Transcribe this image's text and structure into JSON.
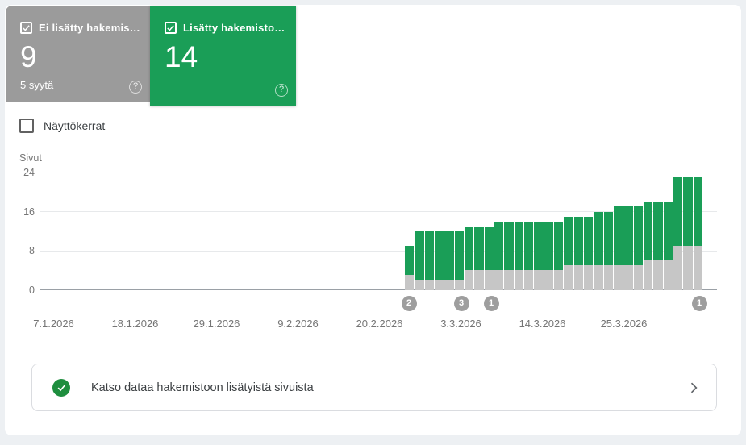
{
  "cards": {
    "not_indexed": {
      "label": "Ei lisätty hakemis…",
      "value": "9",
      "sublabel": "5 syytä",
      "checked": true
    },
    "indexed": {
      "label": "Lisätty hakemisto…",
      "value": "14",
      "checked": true
    }
  },
  "impressions_toggle": {
    "label": "Näyttökerrat",
    "checked": false
  },
  "chart_data": {
    "type": "bar",
    "stacked": true,
    "ylabel": "Sivut",
    "ylim": [
      0,
      24
    ],
    "y_ticks": [
      24,
      16,
      8,
      0
    ],
    "grid": true,
    "x_tick_labels": [
      "7.1.2026",
      "18.1.2026",
      "29.1.2026",
      "9.2.2026",
      "20.2.2026",
      "3.3.2026",
      "14.3.2026",
      "25.3.2026"
    ],
    "series": [
      {
        "name": "Ei lisätty hakemistoon",
        "color": "#c6c6c6",
        "values": [
          3,
          2,
          2,
          2,
          2,
          2,
          4,
          4,
          4,
          4,
          4,
          4,
          4,
          4,
          4,
          4,
          5,
          5,
          5,
          5,
          5,
          5,
          5,
          5,
          6,
          6,
          6,
          9,
          9,
          9
        ]
      },
      {
        "name": "Lisätty hakemistoon",
        "color": "#1a9e57",
        "values": [
          6,
          10,
          10,
          10,
          10,
          10,
          9,
          9,
          9,
          10,
          10,
          10,
          10,
          10,
          10,
          10,
          10,
          10,
          10,
          11,
          11,
          12,
          12,
          12,
          12,
          12,
          12,
          14,
          14,
          14
        ]
      }
    ],
    "annotations": [
      {
        "label": "2",
        "bar_index": 0
      },
      {
        "label": "3",
        "bar_index": 6
      },
      {
        "label": "1",
        "bar_index": 9
      },
      {
        "label": "1",
        "bar_index": 29
      }
    ]
  },
  "footer_link": {
    "text": "Katso dataa hakemistoon lisätyistä sivuista"
  },
  "colors": {
    "green": "#1a9e57",
    "gray_card": "#9b9b9b",
    "gray_bar": "#c6c6c6",
    "badge_gray": "#9e9e9e",
    "check_circle_green": "#1e8e3e"
  }
}
